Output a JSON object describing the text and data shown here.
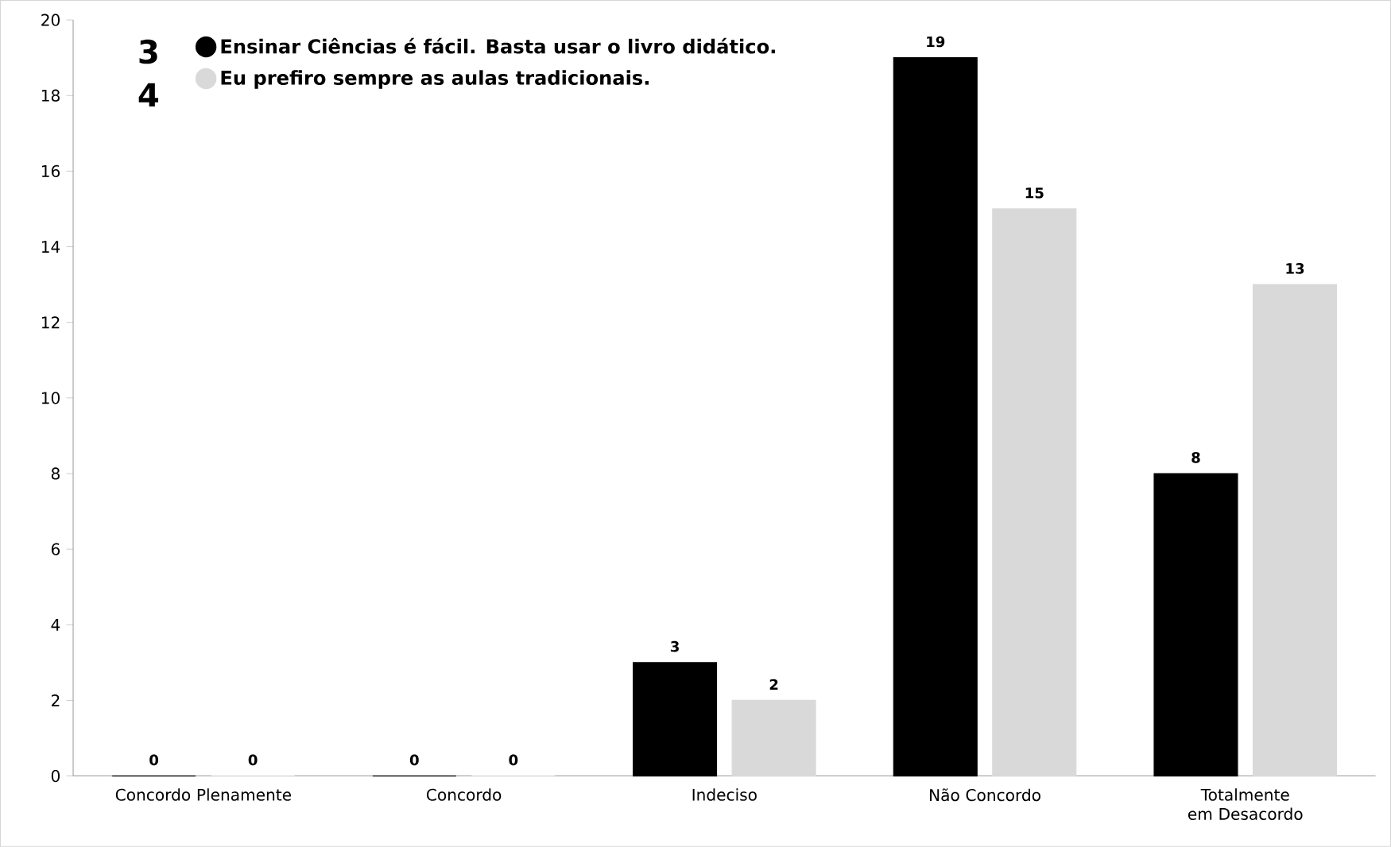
{
  "chart_data": {
    "type": "bar",
    "categories": [
      "Concordo Plenamente",
      "Concordo",
      "Indeciso",
      "Não Concordo",
      "Totalmente em Desacordo"
    ],
    "series": [
      {
        "name": "Ensinar Ciências é fácil. Basta usar o livro didático.",
        "color": "#000000",
        "values": [
          0,
          0,
          3,
          19,
          8
        ]
      },
      {
        "name": "Eu prefiro sempre as aulas tradicionais.",
        "color": "#d9d9d9",
        "values": [
          0,
          0,
          2,
          15,
          13
        ]
      }
    ],
    "ylim": [
      0,
      20
    ],
    "yticks": [
      0,
      2,
      4,
      6,
      8,
      10,
      12,
      14,
      16,
      18,
      20
    ],
    "data_labels": true,
    "grid": false,
    "legend": "top left",
    "annotations": [
      "3",
      "4"
    ]
  }
}
